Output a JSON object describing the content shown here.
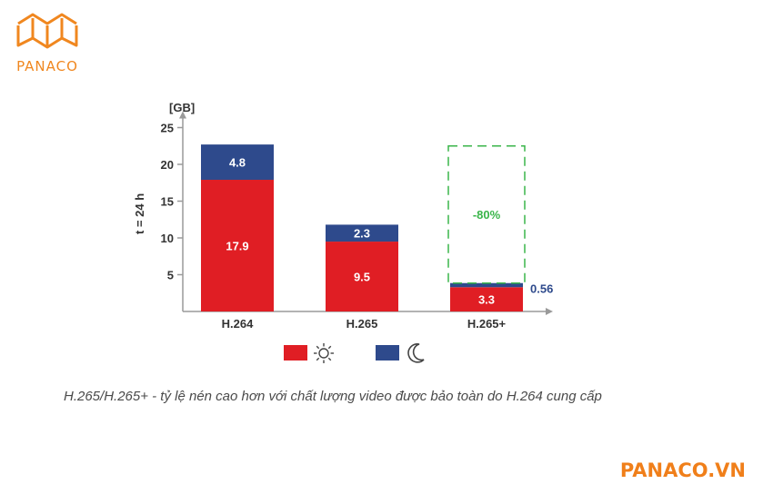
{
  "logo": {
    "text": "PANACO"
  },
  "chart_data": {
    "type": "bar",
    "stacked": true,
    "ylabel": "t = 24 h",
    "yunit": "[GB]",
    "ylim": [
      0,
      25
    ],
    "yticks": [
      5,
      10,
      15,
      20,
      25
    ],
    "categories": [
      "H.264",
      "H.265",
      "H.265+"
    ],
    "series": [
      {
        "icon": "sun-icon",
        "color": "#e01e24",
        "values": [
          17.9,
          9.5,
          3.3
        ]
      },
      {
        "icon": "moon-icon",
        "color": "#2e4a8c",
        "values": [
          4.8,
          2.3,
          0.56
        ]
      }
    ],
    "annotation": {
      "text": "-80%",
      "color": "#3ab54a"
    },
    "legend_position": "bottom"
  },
  "caption": "H.265/H.265+ - tỷ lệ nén cao hơn với chất lượng video được bảo toàn do H.264 cung cấp",
  "brand": "PANACO.VN"
}
